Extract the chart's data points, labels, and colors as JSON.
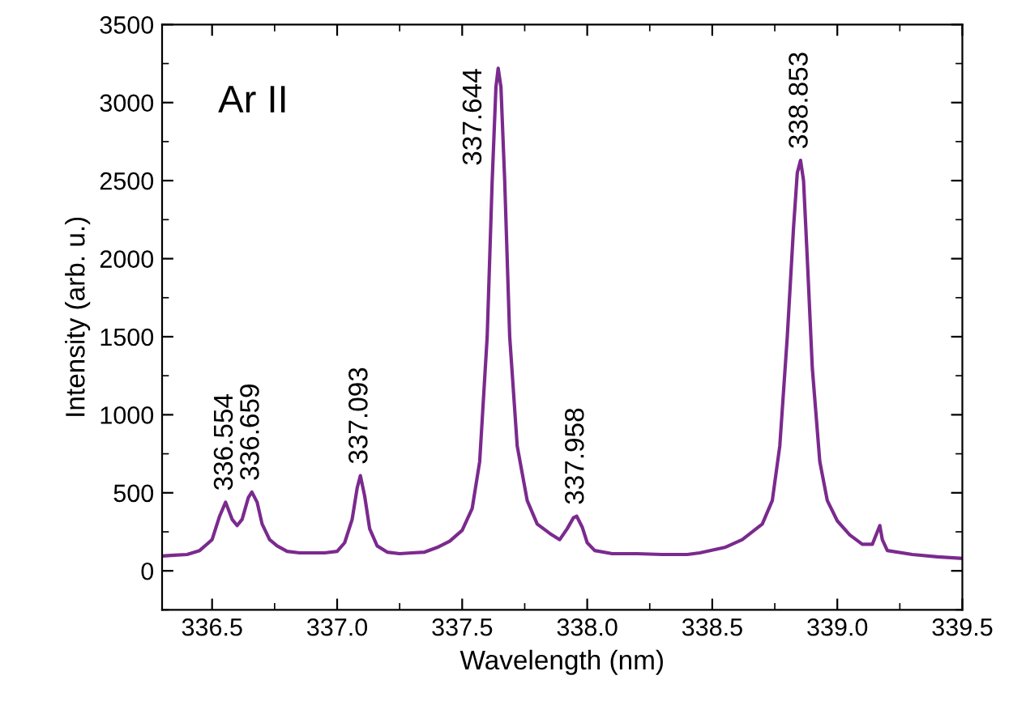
{
  "chart_data": {
    "type": "line",
    "xlabel": "Wavelength (nm)",
    "ylabel": "Intensity (arb. u.)",
    "xlim": [
      336.3,
      339.5
    ],
    "xticks": [
      {
        "value": 336.5,
        "label": "336.5"
      },
      {
        "value": 337.0,
        "label": "337.0"
      },
      {
        "value": 337.5,
        "label": "337.5"
      },
      {
        "value": 338.0,
        "label": "338.0"
      },
      {
        "value": 338.5,
        "label": "338.5"
      },
      {
        "value": 339.0,
        "label": "339.0"
      },
      {
        "value": 339.5,
        "label": "339.5"
      }
    ],
    "ylim": [
      -250,
      3500
    ],
    "yticks": [
      0,
      500,
      1000,
      1500,
      2000,
      2500,
      3000,
      3500
    ],
    "grid": false,
    "legend": false,
    "marker": "none",
    "line_style": "solid",
    "series": [
      {
        "color": "#7b2a8e",
        "x": [
          336.3,
          336.35,
          336.4,
          336.45,
          336.5,
          336.53,
          336.554,
          336.58,
          336.6,
          336.62,
          336.645,
          336.659,
          336.68,
          336.7,
          336.73,
          336.76,
          336.8,
          336.85,
          336.9,
          336.95,
          337.0,
          337.03,
          337.06,
          337.08,
          337.093,
          337.11,
          337.13,
          337.16,
          337.2,
          337.25,
          337.3,
          337.35,
          337.4,
          337.45,
          337.5,
          337.54,
          337.57,
          337.6,
          337.62,
          337.635,
          337.644,
          337.655,
          337.67,
          337.69,
          337.72,
          337.76,
          337.8,
          337.85,
          337.89,
          337.92,
          337.945,
          337.958,
          337.98,
          338.0,
          338.03,
          338.1,
          338.2,
          338.3,
          338.4,
          338.45,
          338.55,
          338.62,
          338.7,
          338.74,
          338.77,
          338.8,
          338.825,
          338.84,
          338.853,
          338.865,
          338.88,
          338.9,
          338.93,
          338.96,
          339.0,
          339.05,
          339.1,
          339.14,
          339.16,
          339.17,
          339.18,
          339.2,
          339.3,
          339.4,
          339.5
        ],
        "values": [
          95,
          100,
          105,
          130,
          200,
          350,
          440,
          330,
          290,
          330,
          470,
          505,
          440,
          300,
          200,
          160,
          125,
          115,
          115,
          115,
          125,
          180,
          330,
          530,
          610,
          480,
          270,
          160,
          120,
          110,
          115,
          120,
          150,
          190,
          260,
          400,
          700,
          1500,
          2500,
          3100,
          3220,
          3100,
          2500,
          1500,
          800,
          450,
          300,
          240,
          200,
          270,
          340,
          350,
          280,
          180,
          130,
          110,
          110,
          105,
          105,
          115,
          150,
          200,
          300,
          450,
          800,
          1500,
          2200,
          2550,
          2630,
          2500,
          2000,
          1300,
          700,
          450,
          320,
          230,
          170,
          170,
          250,
          290,
          200,
          130,
          105,
          90,
          80
        ]
      }
    ],
    "annotations": [
      "Ar II",
      {
        "text": "336.554",
        "x": 336.554,
        "y": 440
      },
      {
        "text": "336.659",
        "x": 336.659,
        "y": 505
      },
      {
        "text": "337.093",
        "x": 337.093,
        "y": 610
      },
      {
        "text": "337.644",
        "x": 337.644,
        "y": 3220
      },
      {
        "text": "337.958",
        "x": 337.958,
        "y": 350
      },
      {
        "text": "338.853",
        "x": 338.853,
        "y": 2630
      }
    ]
  }
}
